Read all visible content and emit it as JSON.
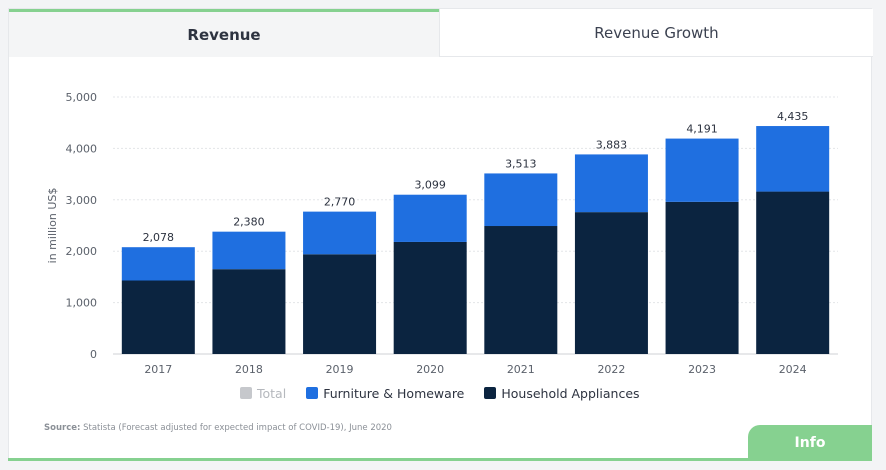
{
  "tabs": {
    "active_label": "Revenue",
    "inactive_label": "Revenue Growth"
  },
  "colors": {
    "furniture": "#1f6fe0",
    "appliances": "#0b2440",
    "total": "#c6c8cc",
    "accent": "#86d190"
  },
  "legend": {
    "total": "Total",
    "furniture": "Furniture & Homeware",
    "appliances": "Household Appliances"
  },
  "source": {
    "label": "Source:",
    "text": "Statista (Forecast adjusted for expected impact of COVID-19), June 2020"
  },
  "info_label": "Info",
  "chart_data": {
    "type": "bar",
    "stacked": true,
    "categories": [
      "2017",
      "2018",
      "2019",
      "2020",
      "2021",
      "2022",
      "2023",
      "2024"
    ],
    "series": [
      {
        "name": "Household Appliances",
        "values": [
          1430,
          1650,
          1940,
          2180,
          2490,
          2760,
          2960,
          3160
        ]
      },
      {
        "name": "Furniture & Homeware",
        "values": [
          648,
          730,
          830,
          919,
          1023,
          1123,
          1231,
          1275
        ]
      }
    ],
    "totals": [
      "2,078",
      "2,380",
      "2,770",
      "3,099",
      "3,513",
      "3,883",
      "4,191",
      "4,435"
    ],
    "ylabel": "in million US$",
    "yticks": [
      "0",
      "1,000",
      "2,000",
      "3,000",
      "4,000",
      "5,000"
    ],
    "ylim": [
      0,
      5000
    ],
    "grid": true,
    "legend_position": "bottom"
  }
}
